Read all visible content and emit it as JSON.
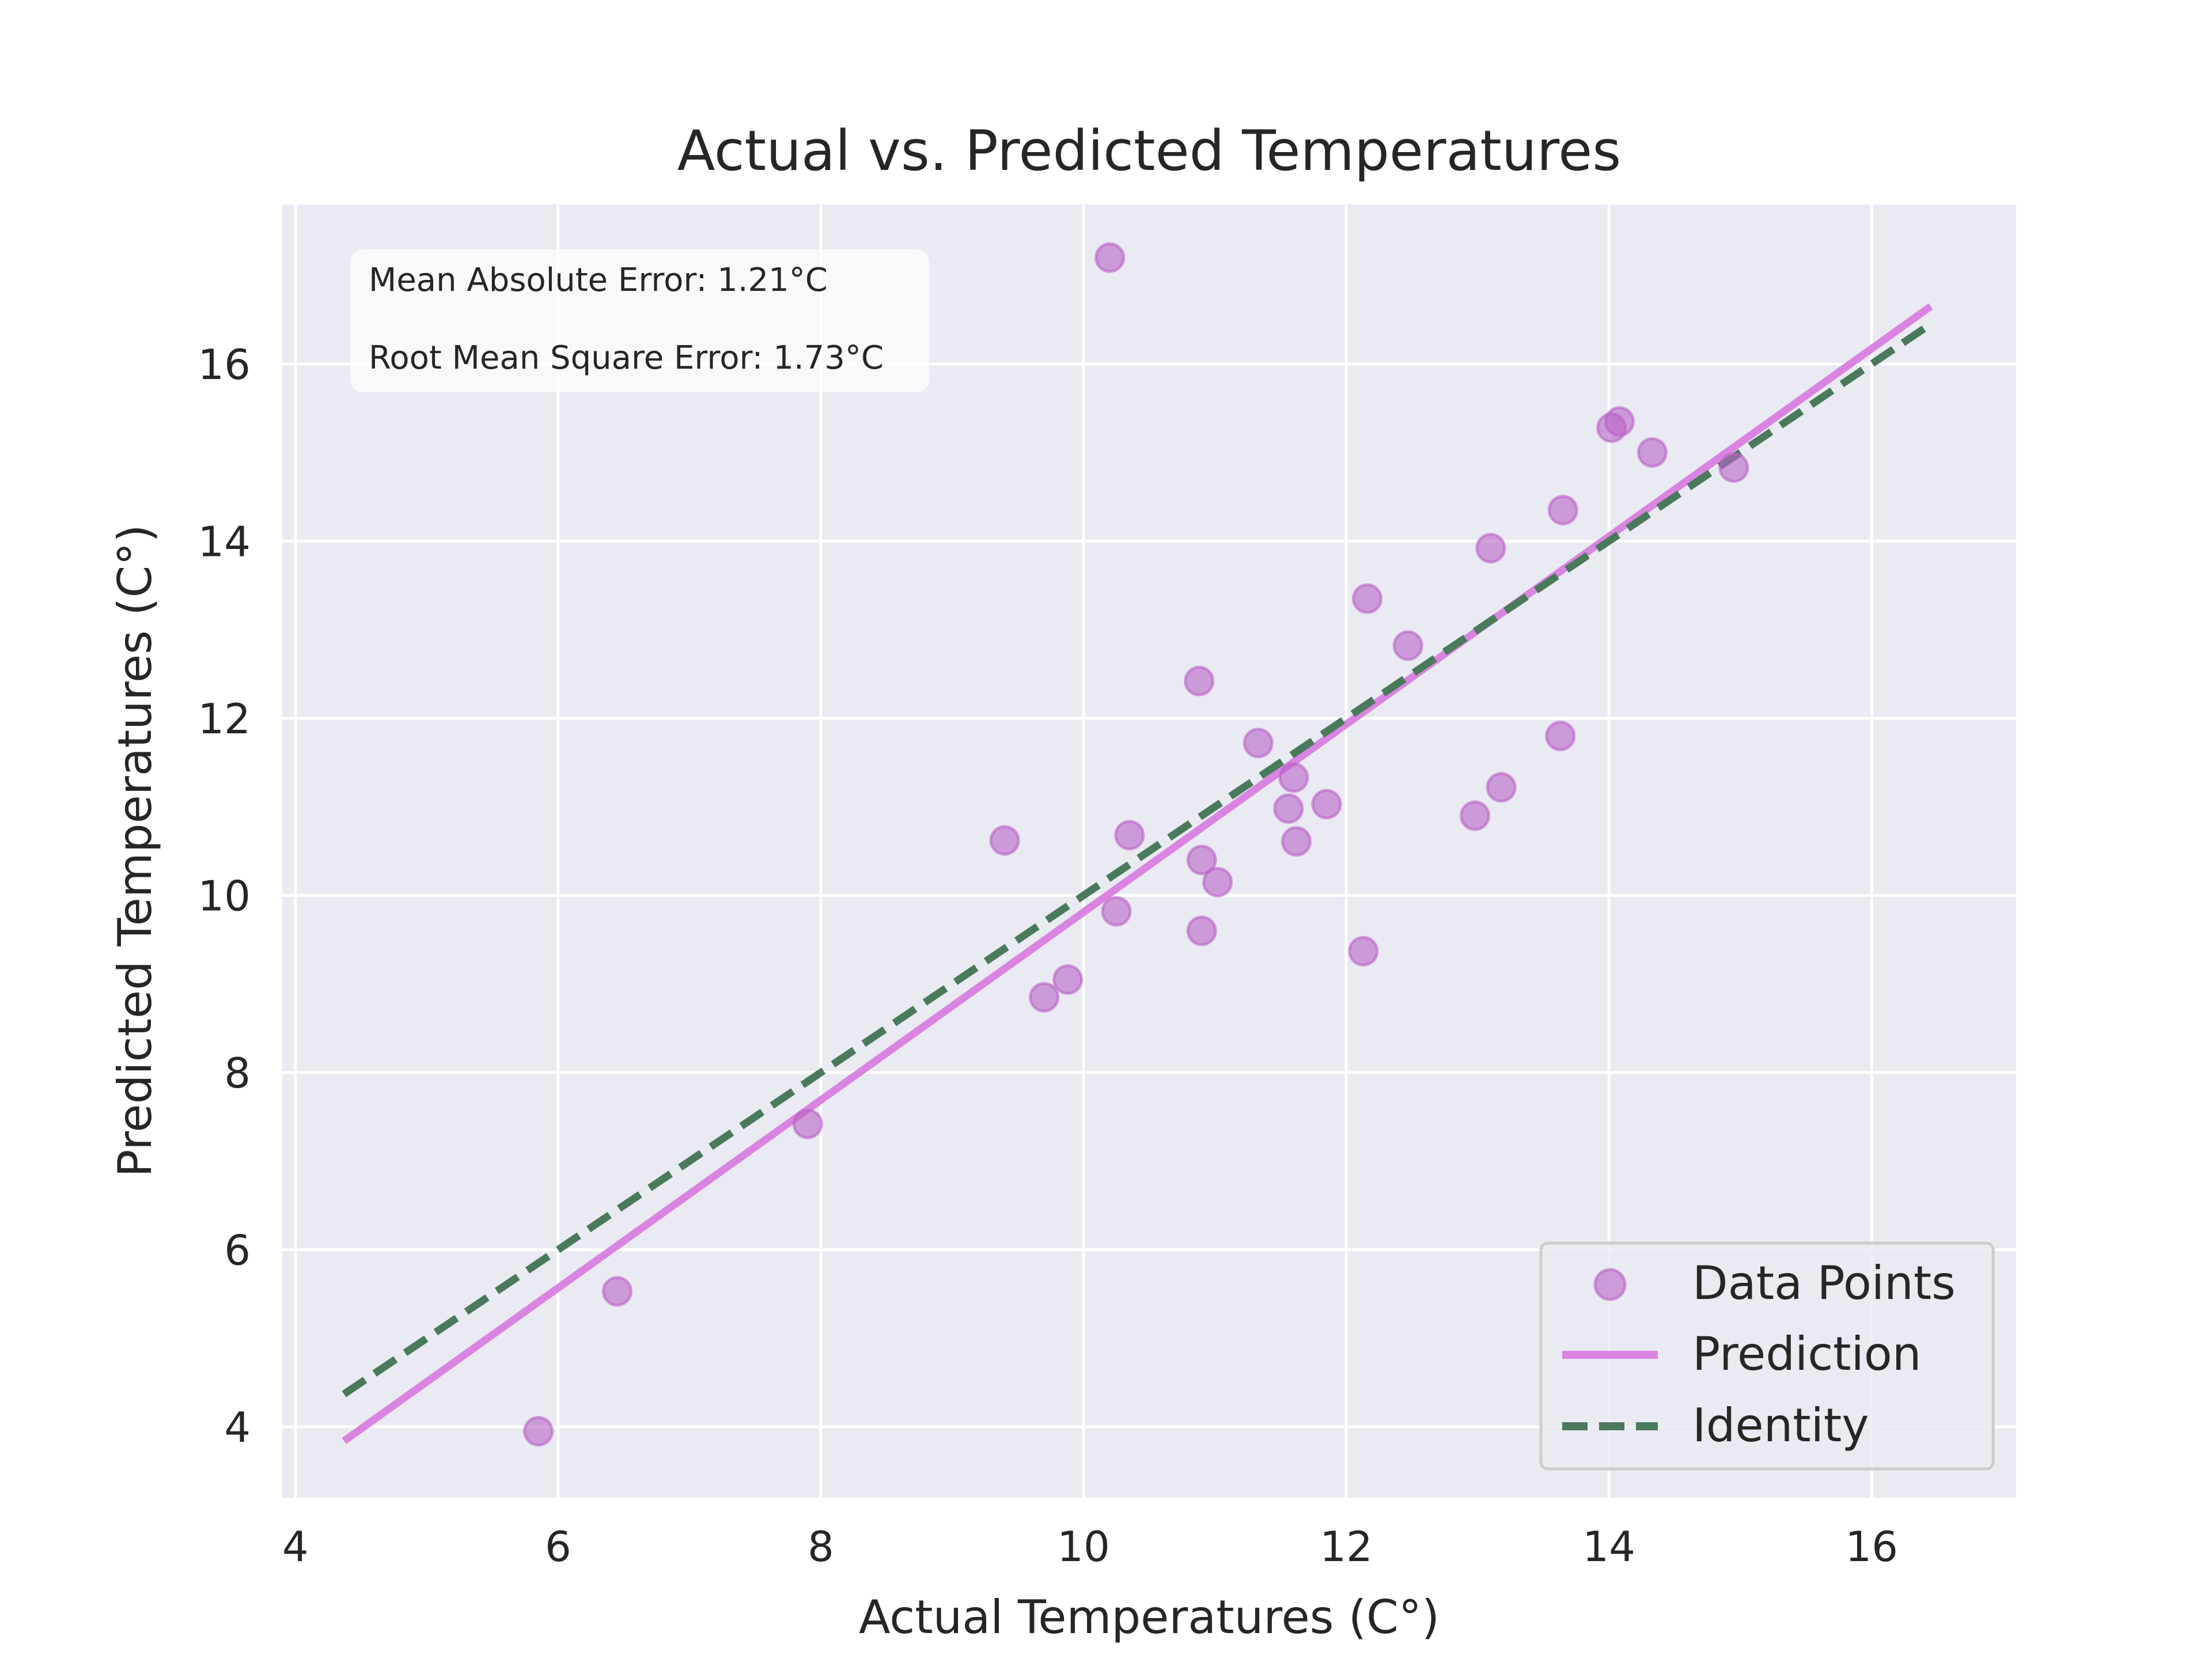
{
  "chart_data": {
    "type": "scatter",
    "title": "Actual vs. Predicted Temperatures",
    "xlabel": "Actual Temperatures (C°)",
    "ylabel": "Predicted Temperatures (C°)",
    "xlim": [
      3.9,
      17.1
    ],
    "ylim": [
      3.2,
      17.8
    ],
    "xticks": [
      4,
      6,
      8,
      10,
      12,
      14,
      16
    ],
    "yticks": [
      4,
      6,
      8,
      10,
      12,
      14,
      16
    ],
    "grid": true,
    "legend_position": "bottom-right",
    "series": [
      {
        "name": "Data Points",
        "kind": "scatter",
        "color": "#b964c8",
        "points": [
          [
            5.85,
            3.95
          ],
          [
            6.45,
            5.53
          ],
          [
            7.9,
            7.42
          ],
          [
            9.4,
            10.62
          ],
          [
            9.7,
            8.85
          ],
          [
            9.88,
            9.05
          ],
          [
            10.2,
            17.2
          ],
          [
            10.25,
            9.82
          ],
          [
            10.35,
            10.68
          ],
          [
            10.88,
            12.42
          ],
          [
            10.9,
            10.4
          ],
          [
            10.9,
            9.6
          ],
          [
            11.02,
            10.15
          ],
          [
            11.33,
            11.72
          ],
          [
            11.56,
            10.98
          ],
          [
            11.6,
            11.33
          ],
          [
            11.62,
            10.61
          ],
          [
            11.85,
            11.03
          ],
          [
            12.13,
            9.37
          ],
          [
            12.16,
            13.35
          ],
          [
            12.47,
            12.82
          ],
          [
            12.98,
            10.9
          ],
          [
            13.1,
            13.92
          ],
          [
            13.18,
            11.22
          ],
          [
            13.63,
            11.8
          ],
          [
            13.65,
            14.35
          ],
          [
            14.02,
            15.28
          ],
          [
            14.08,
            15.35
          ],
          [
            14.33,
            15.0
          ],
          [
            14.95,
            14.83
          ]
        ]
      },
      {
        "name": "Prediction",
        "kind": "line",
        "color": "#da84e2",
        "points": [
          [
            4.37,
            3.84
          ],
          [
            16.45,
            16.65
          ]
        ]
      },
      {
        "name": "Identity",
        "kind": "dashed-line",
        "color": "#4a7a5c",
        "points": [
          [
            4.37,
            4.37
          ],
          [
            16.45,
            16.45
          ]
        ]
      }
    ],
    "annotations": {
      "mae": "Mean Absolute Error: 1.21°C",
      "rmse": "Root Mean Square Error: 1.73°C"
    }
  }
}
